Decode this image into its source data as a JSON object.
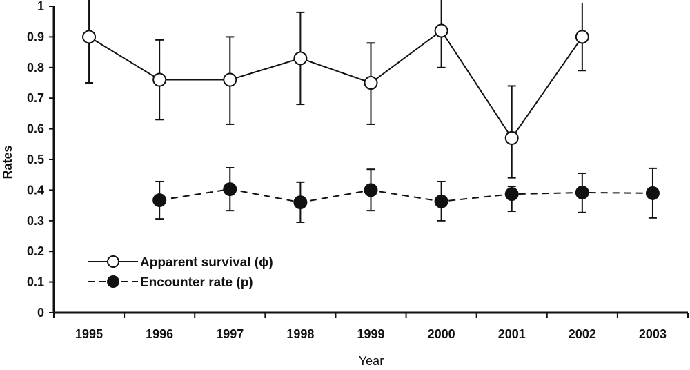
{
  "chart_data": {
    "type": "line",
    "title": "",
    "xlabel": "Year",
    "ylabel": "Rates",
    "ylim": [
      0,
      1
    ],
    "yticks": [
      "0",
      "0.1",
      "0.2",
      "0.3",
      "0.4",
      "0.5",
      "0.6",
      "0.7",
      "0.8",
      "0.9",
      "1"
    ],
    "categories": [
      "1995",
      "1996",
      "1997",
      "1998",
      "1999",
      "2000",
      "2001",
      "2002",
      "2003"
    ],
    "grid": false,
    "legend_position": "lower-left",
    "series": [
      {
        "name": "Apparent survival (ϕ)",
        "marker": "open-circle",
        "line_style": "solid",
        "values": [
          0.9,
          0.76,
          0.76,
          0.83,
          0.75,
          0.92,
          0.57,
          0.9,
          null
        ],
        "error_upper": [
          1.05,
          0.89,
          0.9,
          0.98,
          0.88,
          1.03,
          0.74,
          1.01,
          null
        ],
        "error_lower": [
          0.75,
          0.63,
          0.615,
          0.68,
          0.615,
          0.8,
          0.44,
          0.79,
          null
        ]
      },
      {
        "name": "Encounter rate (p)",
        "marker": "filled-circle",
        "line_style": "dashed",
        "values": [
          null,
          0.367,
          0.403,
          0.36,
          0.4,
          0.363,
          0.387,
          0.392,
          0.39
        ],
        "error_upper": [
          null,
          0.428,
          0.473,
          0.426,
          0.468,
          0.428,
          0.412,
          0.455,
          0.471
        ],
        "error_lower": [
          null,
          0.306,
          0.333,
          0.295,
          0.333,
          0.3,
          0.331,
          0.327,
          0.309
        ]
      }
    ]
  },
  "legend": {
    "survival_label": "Apparent survival  (ϕ)",
    "encounter_label": "Encounter  rate (p)"
  },
  "axes": {
    "x_title": "Year",
    "y_title": "Rates"
  },
  "colors": {
    "ink": "#111111",
    "open_marker_fill": "#ffffff",
    "background": "#ffffff"
  }
}
